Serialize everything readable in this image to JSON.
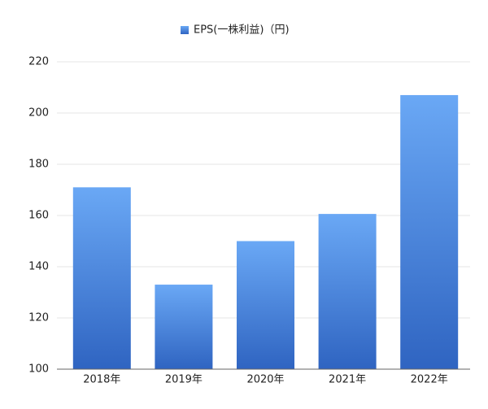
{
  "chart_data": {
    "type": "bar",
    "categories": [
      "2018年",
      "2019年",
      "2020年",
      "2021年",
      "2022年"
    ],
    "series": [
      {
        "name": "EPS(一株利益)（円)",
        "color": "#2f64c1",
        "values": [
          171,
          133,
          150,
          160.6,
          207
        ]
      }
    ],
    "ylim": [
      100,
      220
    ],
    "yticks": [
      100,
      120,
      140,
      160,
      180,
      200,
      220
    ],
    "grid": true,
    "legend": "top"
  }
}
